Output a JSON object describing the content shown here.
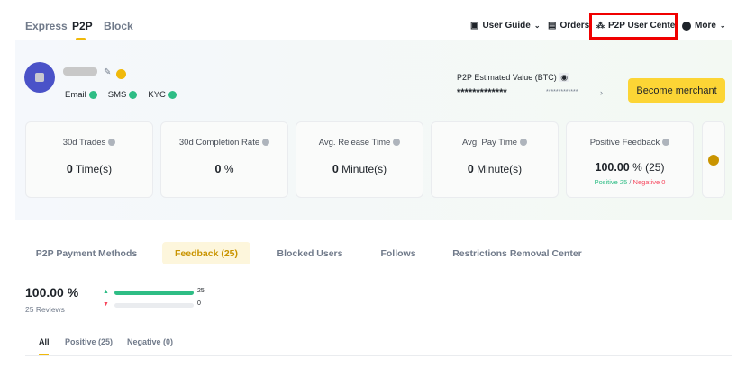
{
  "nav": {
    "tabs": [
      "Express",
      "P2P",
      "Block"
    ],
    "active": "P2P"
  },
  "top_right": {
    "user_guide": "User Guide",
    "orders": "Orders",
    "user_center": "P2P User Center",
    "more": "More"
  },
  "profile": {
    "verifications": [
      "Email",
      "SMS",
      "KYC"
    ],
    "estimated_label": "P2P Estimated Value (BTC)",
    "estimated_value": "*************",
    "estimated_fiat": "*************",
    "become_merchant": "Become merchant"
  },
  "stats": [
    {
      "title": "30d Trades",
      "value": "0",
      "unit": "Time(s)"
    },
    {
      "title": "30d Completion Rate",
      "value": "0",
      "unit": "%"
    },
    {
      "title": "Avg. Release Time",
      "value": "0",
      "unit": "Minute(s)"
    },
    {
      "title": "Avg. Pay Time",
      "value": "0",
      "unit": "Minute(s)"
    },
    {
      "title": "Positive Feedback",
      "value": "100.00",
      "unit": "% (25)",
      "positive": "Positive 25",
      "sep": "/",
      "negative": "Negative 0"
    }
  ],
  "tabs": [
    "P2P Payment Methods",
    "Feedback (25)",
    "Blocked Users",
    "Follows",
    "Restrictions Removal Center"
  ],
  "feedback": {
    "rate": "100.00 %",
    "reviews": "25 Reviews",
    "positive_count": "25",
    "negative_count": "0",
    "positive_fraction": 1.0,
    "subtabs": [
      "All",
      "Positive (25)",
      "Negative (0)"
    ]
  },
  "colors": {
    "accent": "#f0b90b",
    "positive": "#2ebd85",
    "negative": "#f6465d",
    "highlight": "#f00000"
  }
}
